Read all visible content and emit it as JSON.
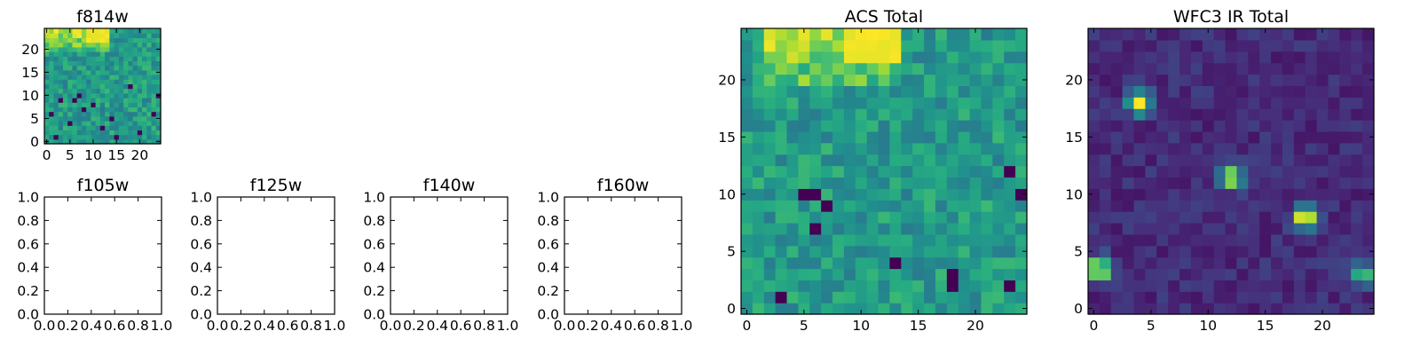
{
  "figure": {
    "colormap": "viridis",
    "colors": [
      "#440154",
      "#3b528b",
      "#21918c",
      "#5ec962",
      "#fde725"
    ]
  },
  "chart_data": [
    {
      "type": "heatmap",
      "title": "f814w",
      "grid": false,
      "size": 25,
      "xlim": [
        -0.5,
        24.5
      ],
      "ylim": [
        -0.5,
        24.5
      ],
      "xticks": [
        0,
        5,
        10,
        15,
        20
      ],
      "yticks": [
        0,
        5,
        10,
        15,
        20
      ],
      "xtick_labels": [
        "0",
        "5",
        "10",
        "15",
        "20"
      ],
      "ytick_labels": [
        "0",
        "5",
        "10",
        "15",
        "20"
      ],
      "pattern": "bright-top",
      "bright_region": {
        "x": [
          1,
          13
        ],
        "y": [
          20,
          24
        ]
      },
      "dark_pixels": [
        [
          2,
          1
        ],
        [
          5,
          4
        ],
        [
          3,
          9
        ],
        [
          7,
          10
        ],
        [
          10,
          8
        ],
        [
          14,
          5
        ],
        [
          18,
          12
        ],
        [
          20,
          2
        ],
        [
          23,
          6
        ],
        [
          24,
          10
        ],
        [
          12,
          3
        ],
        [
          8,
          7
        ],
        [
          15,
          1
        ],
        [
          1,
          6
        ],
        [
          6,
          9
        ]
      ]
    },
    {
      "type": "heatmap",
      "title": "ACS Total",
      "grid": false,
      "size": 25,
      "xlim": [
        -0.5,
        24.5
      ],
      "ylim": [
        -0.5,
        24.5
      ],
      "xticks": [
        0,
        5,
        10,
        15,
        20
      ],
      "yticks": [
        0,
        5,
        10,
        15,
        20
      ],
      "xtick_labels": [
        "0",
        "5",
        "10",
        "15",
        "20"
      ],
      "ytick_labels": [
        "0",
        "5",
        "10",
        "15",
        "20"
      ],
      "pattern": "bright-top",
      "bright_region": {
        "x": [
          3,
          13
        ],
        "y": [
          20,
          24
        ]
      },
      "dark_pixels": [
        [
          5,
          10
        ],
        [
          6,
          10
        ],
        [
          7,
          9
        ],
        [
          6,
          7
        ],
        [
          3,
          1
        ],
        [
          13,
          4
        ],
        [
          18,
          2
        ],
        [
          23,
          2
        ],
        [
          23,
          12
        ],
        [
          24,
          10
        ],
        [
          18,
          3
        ]
      ]
    },
    {
      "type": "heatmap",
      "title": "WFC3 IR Total",
      "grid": false,
      "size": 25,
      "xlim": [
        -0.5,
        24.5
      ],
      "ylim": [
        -0.5,
        24.5
      ],
      "xticks": [
        0,
        5,
        10,
        15,
        20
      ],
      "yticks": [
        0,
        5,
        10,
        15,
        20
      ],
      "xtick_labels": [
        "0",
        "5",
        "10",
        "15",
        "20"
      ],
      "ytick_labels": [
        "0",
        "5",
        "10",
        "15",
        "20"
      ],
      "pattern": "point-sources",
      "sources": [
        {
          "x": 4,
          "y": 18,
          "peak": 1.0
        },
        {
          "x": 12,
          "y": 11.5,
          "peak": 0.9
        },
        {
          "x": 18.5,
          "y": 8,
          "peak": 1.0
        },
        {
          "x": 0.5,
          "y": 3.5,
          "peak": 1.0
        },
        {
          "x": 23.5,
          "y": 3,
          "peak": 0.7
        }
      ]
    },
    {
      "type": "empty",
      "title": "f105w",
      "xlim": [
        0,
        1
      ],
      "ylim": [
        0,
        1
      ],
      "xtick_labels": [
        "0.0",
        "0.2",
        "0.4",
        "0.6",
        "0.8",
        "1.0"
      ],
      "ytick_labels": [
        "0.0",
        "0.2",
        "0.4",
        "0.6",
        "0.8",
        "1.0"
      ]
    },
    {
      "type": "empty",
      "title": "f125w",
      "xlim": [
        0,
        1
      ],
      "ylim": [
        0,
        1
      ],
      "xtick_labels": [
        "0.0",
        "0.2",
        "0.4",
        "0.6",
        "0.8",
        "1.0"
      ],
      "ytick_labels": [
        "0.0",
        "0.2",
        "0.4",
        "0.6",
        "0.8",
        "1.0"
      ]
    },
    {
      "type": "empty",
      "title": "f140w",
      "xlim": [
        0,
        1
      ],
      "ylim": [
        0,
        1
      ],
      "xtick_labels": [
        "0.0",
        "0.2",
        "0.4",
        "0.6",
        "0.8",
        "1.0"
      ],
      "ytick_labels": [
        "0.0",
        "0.2",
        "0.4",
        "0.6",
        "0.8",
        "1.0"
      ]
    },
    {
      "type": "empty",
      "title": "f160w",
      "xlim": [
        0,
        1
      ],
      "ylim": [
        0,
        1
      ],
      "xtick_labels": [
        "0.0",
        "0.2",
        "0.4",
        "0.6",
        "0.8",
        "1.0"
      ],
      "ytick_labels": [
        "0.0",
        "0.2",
        "0.4",
        "0.6",
        "0.8",
        "1.0"
      ]
    }
  ]
}
